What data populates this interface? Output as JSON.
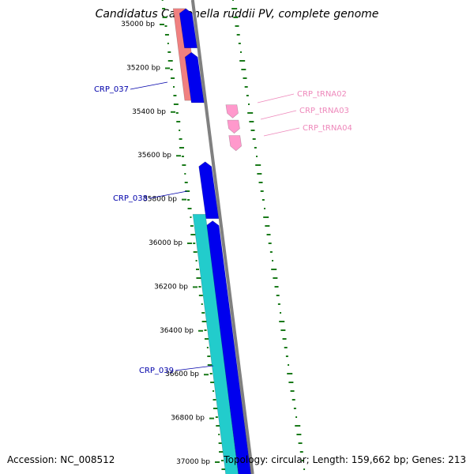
{
  "title": "Candidatus Carsonella ruddii PV, complete genome",
  "footer": {
    "accession": "Accession: NC_008512",
    "summary": "Topology: circular; Length: 159,662 bp; Genes: 213"
  },
  "colors": {
    "cds_forward": "#0000ee",
    "cds_reverse": "#f08080",
    "cds_other": "#22cccc",
    "trna": "#ff99cc",
    "backbone": "#808080",
    "gc_skew": "#1a7a1a",
    "cds_label": "#0000aa",
    "trna_label": "#ee88bb"
  },
  "ticks": [
    {
      "bp": 35000,
      "label": "35000 bp"
    },
    {
      "bp": 35200,
      "label": "35200 bp"
    },
    {
      "bp": 35400,
      "label": "35400 bp"
    },
    {
      "bp": 35600,
      "label": "35600 bp"
    },
    {
      "bp": 35800,
      "label": "35800 bp"
    },
    {
      "bp": 36000,
      "label": "36000 bp"
    },
    {
      "bp": 36200,
      "label": "36200 bp"
    },
    {
      "bp": 36400,
      "label": "36400 bp"
    },
    {
      "bp": 36600,
      "label": "36600 bp"
    },
    {
      "bp": 36800,
      "label": "36800 bp"
    },
    {
      "bp": 37000,
      "label": "37000 bp"
    }
  ],
  "features": [
    {
      "name": "CRP_037",
      "type": "cds",
      "strand": "reverse",
      "start": 34920,
      "end": 35340,
      "labeled": true
    },
    {
      "name": "CRP_037_fwd",
      "type": "cds",
      "strand": "forward",
      "start": 34920,
      "end": 35100,
      "labeled": false
    },
    {
      "name": "CRP_038_a",
      "type": "cds",
      "strand": "forward",
      "start": 35120,
      "end": 35350,
      "labeled": false
    },
    {
      "name": "CRP_038",
      "type": "cds",
      "strand": "forward",
      "start": 35620,
      "end": 35880,
      "labeled": true
    },
    {
      "name": "CRP_039",
      "type": "cds",
      "strand": "forward",
      "start": 35890,
      "end": 37050,
      "labeled": false
    },
    {
      "name": "CRP_039",
      "type": "cds",
      "strand": "other",
      "start": 35860,
      "end": 37050,
      "labeled": true
    },
    {
      "name": "CRP_tRNA02",
      "type": "trna",
      "strand": "forward",
      "start": 35360,
      "end": 35420,
      "labeled": true
    },
    {
      "name": "CRP_tRNA03",
      "type": "trna",
      "strand": "forward",
      "start": 35430,
      "end": 35490,
      "labeled": true
    },
    {
      "name": "CRP_tRNA04",
      "type": "trna",
      "strand": "forward",
      "start": 35500,
      "end": 35570,
      "labeled": true
    }
  ],
  "labels": {
    "CRP_037": {
      "text": "CRP_037",
      "bp": 35300
    },
    "CRP_038": {
      "text": "CRP_038",
      "bp": 35780
    },
    "CRP_039": {
      "text": "CRP_039",
      "bp": 36580
    },
    "CRP_tRNA02": {
      "text": "CRP_tRNA02",
      "bp": 35240
    },
    "CRP_tRNA03": {
      "text": "CRP_tRNA03",
      "bp": 35310
    },
    "CRP_tRNA04": {
      "text": "CRP_tRNA04",
      "bp": 35380
    }
  }
}
